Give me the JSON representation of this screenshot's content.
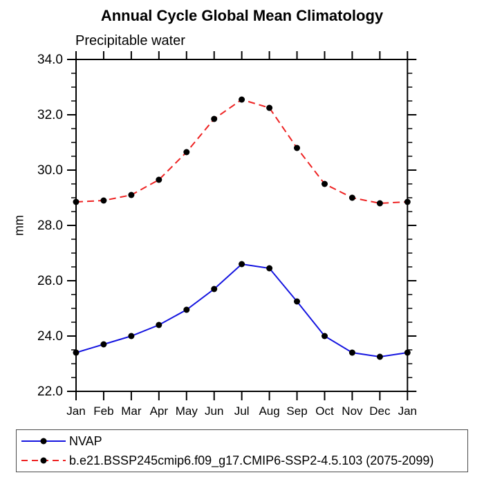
{
  "title": "Annual Cycle Global Mean Climatology",
  "subtitle": "Precipitable water",
  "ylabel": "mm",
  "legend": {
    "position": "bottom-left-box",
    "items": [
      {
        "label": "NVAP",
        "color": "#1414e0",
        "style": "solid",
        "marker_color": "#000000"
      },
      {
        "label": "b.e21.BSSP245cmip6.f09_g17.CMIP6-SSP2-4.5.103 (2075-2099)",
        "color": "#ee2222",
        "style": "dashed",
        "marker_color": "#000000"
      }
    ]
  },
  "chart_data": {
    "type": "line",
    "title": "Annual Cycle Global Mean Climatology",
    "subtitle": "Precipitable water",
    "ylabel": "mm",
    "xlabel": "",
    "x": [
      "Jan",
      "Feb",
      "Mar",
      "Apr",
      "May",
      "Jun",
      "Jul",
      "Aug",
      "Sep",
      "Oct",
      "Nov",
      "Dec",
      "Jan"
    ],
    "series": [
      {
        "name": "NVAP",
        "color": "#1414e0",
        "style": "solid",
        "marker": "filled-circle",
        "marker_color": "#000000",
        "values": [
          23.4,
          23.7,
          24.0,
          24.4,
          24.95,
          25.7,
          26.6,
          26.45,
          25.25,
          24.0,
          23.4,
          23.25,
          23.4
        ]
      },
      {
        "name": "b.e21.BSSP245cmip6.f09_g17.CMIP6-SSP2-4.5.103 (2075-2099)",
        "color": "#ee2222",
        "style": "dashed",
        "marker": "filled-circle",
        "marker_color": "#000000",
        "values": [
          28.85,
          28.9,
          29.1,
          29.65,
          30.65,
          31.85,
          32.55,
          32.25,
          30.8,
          29.5,
          29.0,
          28.8,
          28.85
        ]
      }
    ],
    "ylim": [
      22.0,
      34.0
    ],
    "yticks": [
      22,
      24,
      26,
      28,
      30,
      32,
      34
    ],
    "ytick_labels": [
      "22.0",
      "24.0",
      "26.0",
      "28.0",
      "30.0",
      "32.0",
      "34.0"
    ],
    "yminor_interval": 0.5,
    "grid": false,
    "frame": true,
    "ticks_direction": "out",
    "legend_position": "bottom"
  }
}
